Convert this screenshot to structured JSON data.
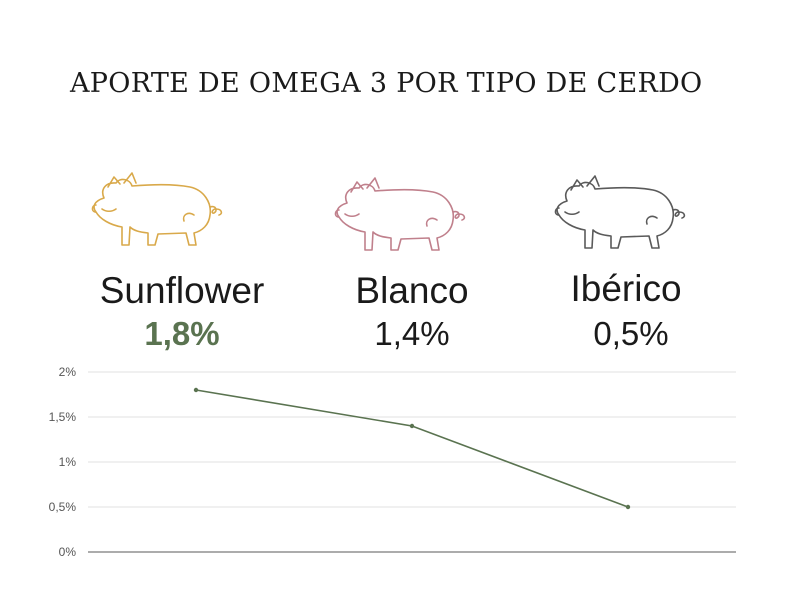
{
  "title": "APORTE DE OMEGA 3 POR TIPO DE CERDO",
  "colors": {
    "sunflower": "#d9a94a",
    "blanco": "#c0808c",
    "iberico": "#5a5a5a",
    "line": "#5a7350",
    "grid": "#e2e2e2",
    "axis": "#7a7a7a"
  },
  "pigs": [
    {
      "icon": "pig-icon",
      "name": "Sunflower",
      "value": "1,8%"
    },
    {
      "icon": "pig-icon",
      "name": "Blanco",
      "value": "1,4%"
    },
    {
      "icon": "pig-icon",
      "name": "Ibérico",
      "value": "0,5%"
    }
  ],
  "chart_data": {
    "type": "line",
    "categories": [
      "Sunflower",
      "Blanco",
      "Ibérico"
    ],
    "series": [
      {
        "values": [
          1.8,
          1.4,
          0.5
        ]
      }
    ],
    "ylim": [
      0,
      2
    ],
    "yticks": [
      0,
      0.5,
      1,
      1.5,
      2
    ],
    "ytick_labels": [
      "0%",
      "0,5%",
      "1%",
      "1,5%",
      "2%"
    ],
    "show_x_tick_labels": false,
    "grid": true
  }
}
